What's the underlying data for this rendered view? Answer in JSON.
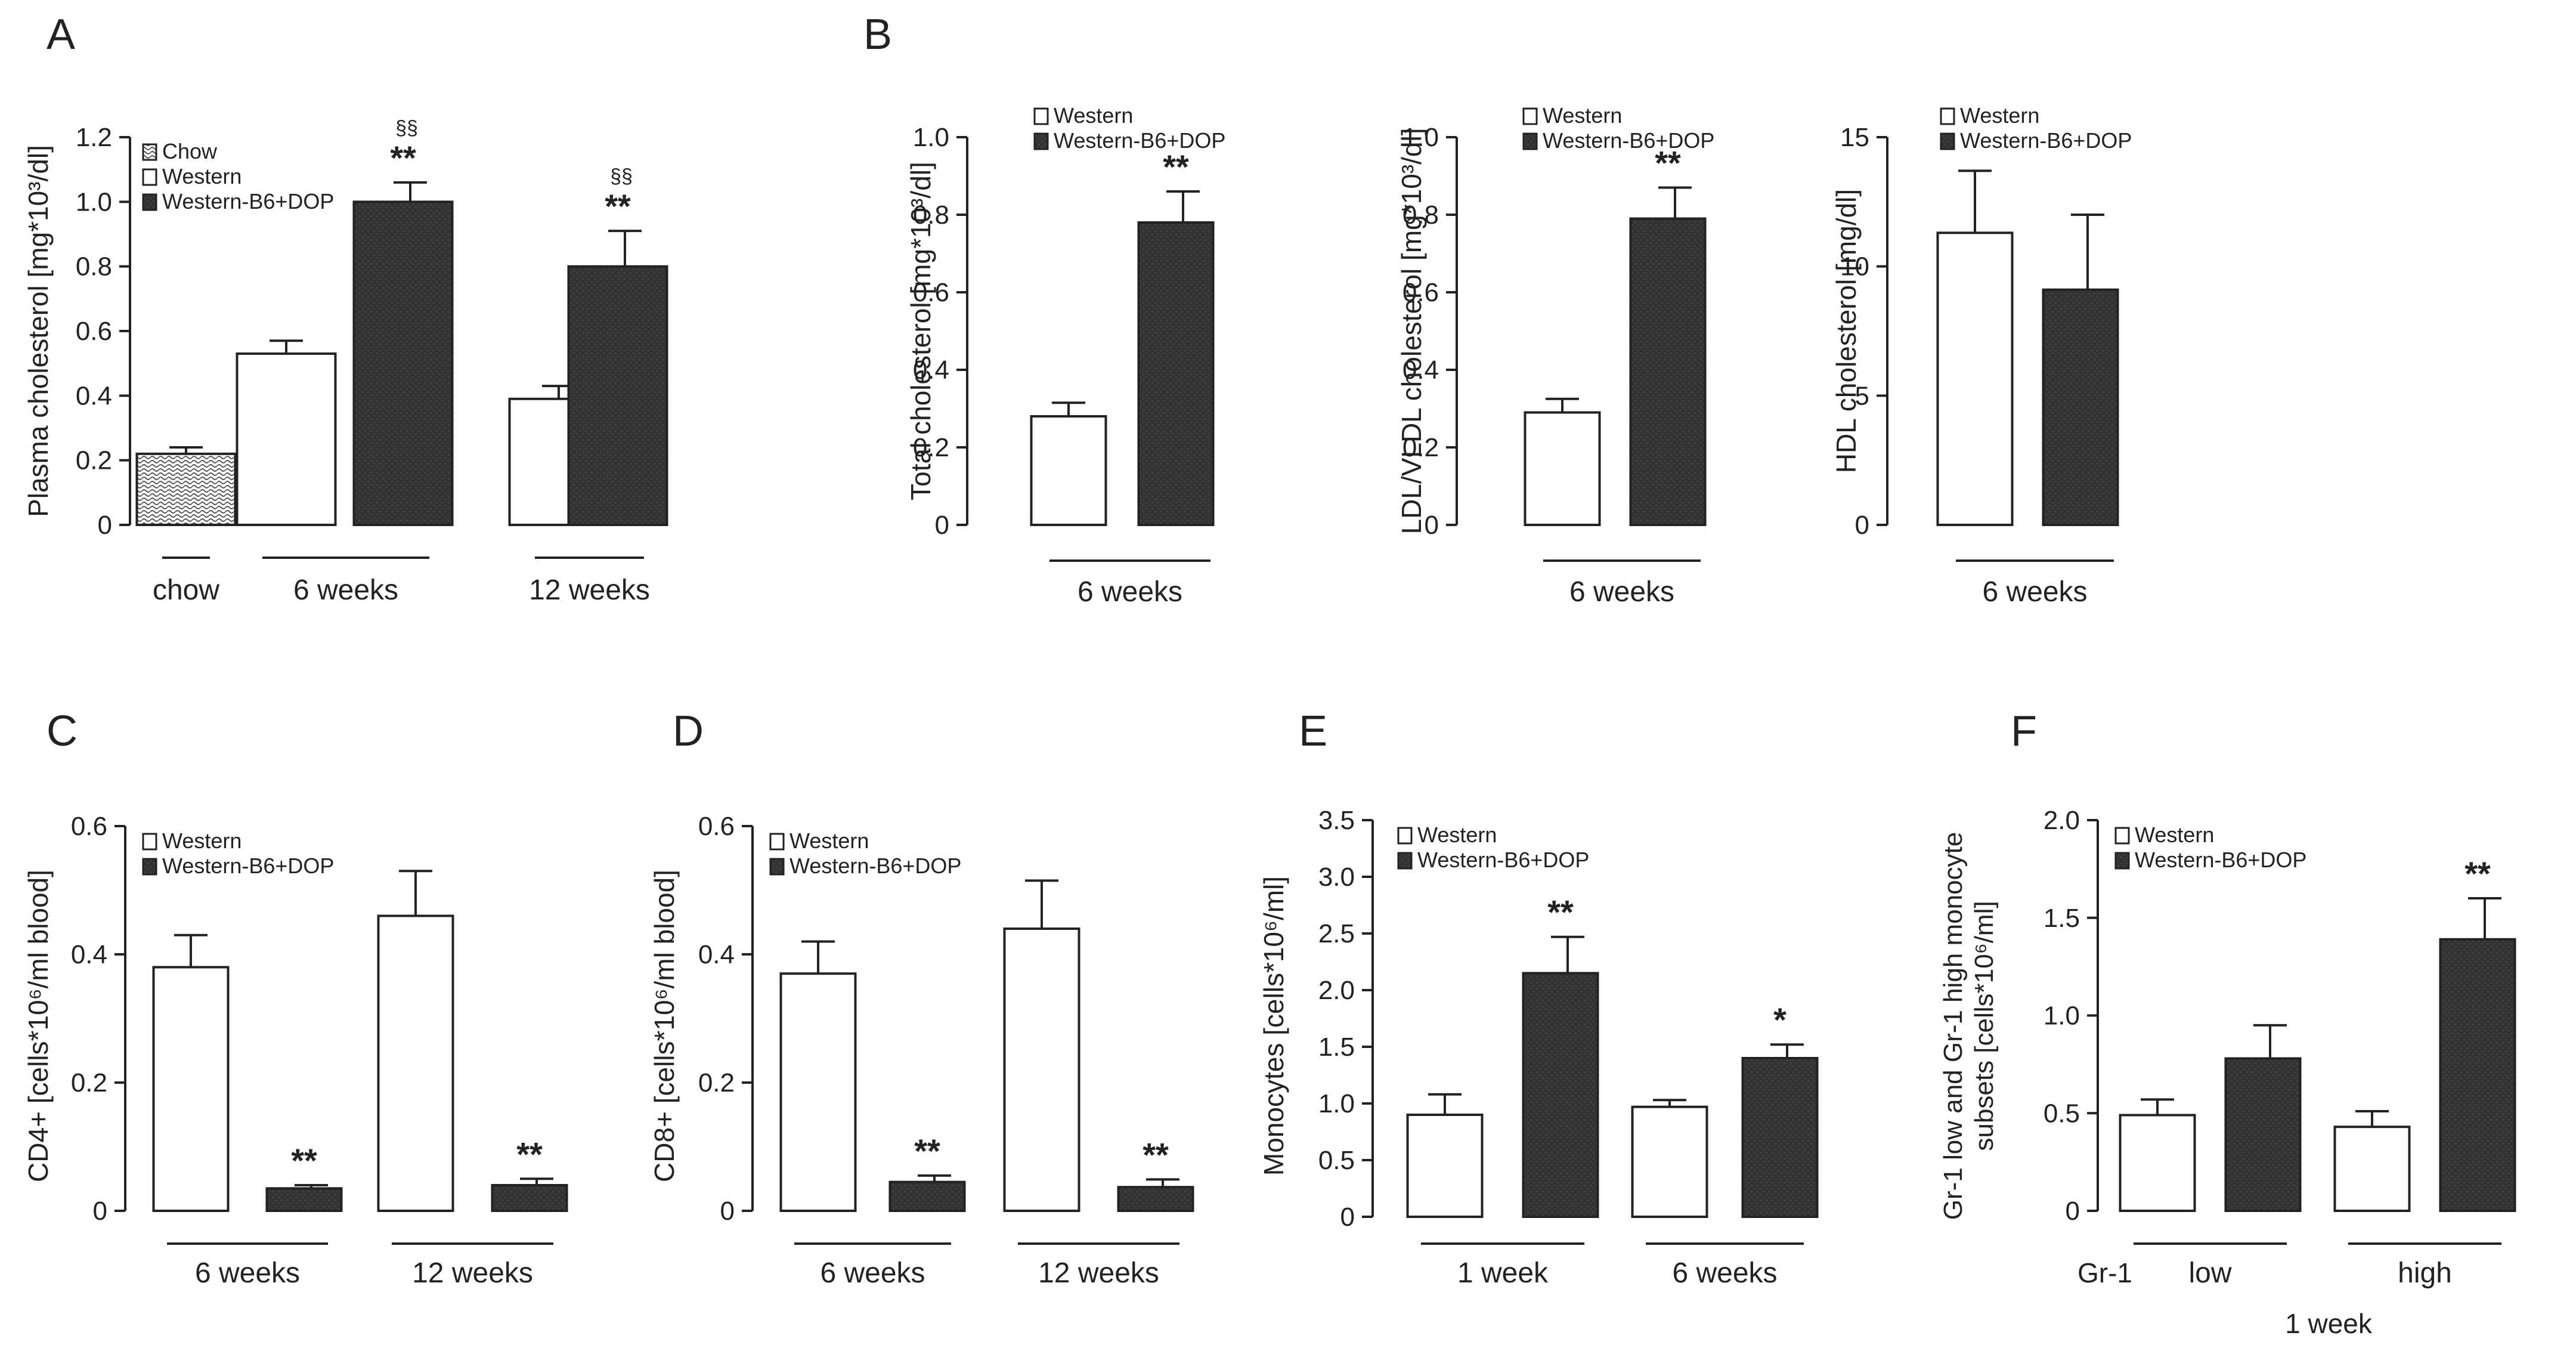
{
  "chart_data": [
    {
      "id": "A",
      "panel_label": "A",
      "type": "bar",
      "ylabel": "Plasma cholesterol [mg*10³/dl]",
      "ylim": [
        0,
        1.2
      ],
      "yticks": [
        0,
        0.2,
        0.4,
        0.6,
        0.8,
        1.0,
        1.2
      ],
      "ytick_labels": [
        "0",
        "0.2",
        "0.4",
        "0.6",
        "0.8",
        "1.0",
        "1.2"
      ],
      "legend": [
        {
          "label": "Chow",
          "fill": "chow"
        },
        {
          "label": "Western",
          "fill": "white"
        },
        {
          "label": "Western-B6+DOP",
          "fill": "dark"
        }
      ],
      "bars": [
        {
          "value": 0.22,
          "error": 0.02,
          "fill": "chow",
          "sig": ""
        },
        {
          "value": 0.53,
          "error": 0.04,
          "fill": "white",
          "sig": ""
        },
        {
          "value": 1.0,
          "error": 0.06,
          "fill": "dark",
          "sig": "**",
          "sig2": "§§"
        },
        {
          "value": 0.39,
          "error": 0.04,
          "fill": "white",
          "sig": ""
        },
        {
          "value": 0.8,
          "error": 0.11,
          "fill": "dark",
          "sig": "**",
          "sig2": "§§"
        }
      ],
      "groups": [
        {
          "label": "chow",
          "bars": [
            0
          ]
        },
        {
          "label": "6 weeks",
          "bars": [
            1,
            2
          ]
        },
        {
          "label": "12 weeks",
          "bars": [
            3,
            4
          ]
        }
      ]
    },
    {
      "id": "B1",
      "panel_label": "B",
      "type": "bar",
      "ylabel": "Total cholesterol [mg*10³/dl]",
      "ylim": [
        0,
        1.0
      ],
      "yticks": [
        0,
        0.2,
        0.4,
        0.6,
        0.8,
        1.0
      ],
      "ytick_labels": [
        "0",
        "0.2",
        "0.4",
        "0.6",
        "0.8",
        "1.0"
      ],
      "legend": [
        {
          "label": "Western",
          "fill": "white"
        },
        {
          "label": "Western-B6+DOP",
          "fill": "dark"
        }
      ],
      "bars": [
        {
          "value": 0.28,
          "error": 0.035,
          "fill": "white",
          "sig": ""
        },
        {
          "value": 0.78,
          "error": 0.08,
          "fill": "dark",
          "sig": "**"
        }
      ],
      "groups": [
        {
          "label": "6 weeks",
          "bars": [
            0,
            1
          ]
        }
      ]
    },
    {
      "id": "B2",
      "panel_label": "",
      "type": "bar",
      "ylabel": "LDL/VLDL cholesterol [mg*10³/dl]",
      "ylim": [
        0,
        1.0
      ],
      "yticks": [
        0,
        0.2,
        0.4,
        0.6,
        0.8,
        1.0
      ],
      "ytick_labels": [
        "0",
        "0.2",
        "0.4",
        "0.6",
        "0.8",
        "1.0"
      ],
      "legend": [
        {
          "label": "Western",
          "fill": "white"
        },
        {
          "label": "Western-B6+DOP",
          "fill": "dark"
        }
      ],
      "bars": [
        {
          "value": 0.29,
          "error": 0.035,
          "fill": "white",
          "sig": ""
        },
        {
          "value": 0.79,
          "error": 0.08,
          "fill": "dark",
          "sig": "**"
        }
      ],
      "groups": [
        {
          "label": "6 weeks",
          "bars": [
            0,
            1
          ]
        }
      ]
    },
    {
      "id": "B3",
      "panel_label": "",
      "type": "bar",
      "ylabel": "HDL cholesterol [mg/dl]",
      "ylim": [
        0,
        15
      ],
      "yticks": [
        0,
        5,
        10,
        15
      ],
      "ytick_labels": [
        "0",
        "5",
        "10",
        "15"
      ],
      "legend": [
        {
          "label": "Western",
          "fill": "white"
        },
        {
          "label": "Western-B6+DOP",
          "fill": "dark"
        }
      ],
      "bars": [
        {
          "value": 11.3,
          "error": 2.4,
          "fill": "white",
          "sig": ""
        },
        {
          "value": 9.1,
          "error": 2.9,
          "fill": "dark",
          "sig": ""
        }
      ],
      "groups": [
        {
          "label": "6 weeks",
          "bars": [
            0,
            1
          ]
        }
      ]
    },
    {
      "id": "C",
      "panel_label": "C",
      "type": "bar",
      "ylabel": "CD4+ [cells*10⁶/ml blood]",
      "ylim": [
        0,
        0.6
      ],
      "yticks": [
        0,
        0.2,
        0.4,
        0.6
      ],
      "ytick_labels": [
        "0",
        "0.2",
        "0.4",
        "0.6"
      ],
      "legend": [
        {
          "label": "Western",
          "fill": "white"
        },
        {
          "label": "Western-B6+DOP",
          "fill": "dark"
        }
      ],
      "bars": [
        {
          "value": 0.38,
          "error": 0.05,
          "fill": "white",
          "sig": ""
        },
        {
          "value": 0.035,
          "error": 0.005,
          "fill": "dark",
          "sig": "**"
        },
        {
          "value": 0.46,
          "error": 0.07,
          "fill": "white",
          "sig": ""
        },
        {
          "value": 0.04,
          "error": 0.01,
          "fill": "dark",
          "sig": "**"
        }
      ],
      "groups": [
        {
          "label": "6 weeks",
          "bars": [
            0,
            1
          ]
        },
        {
          "label": "12 weeks",
          "bars": [
            2,
            3
          ]
        }
      ]
    },
    {
      "id": "D",
      "panel_label": "D",
      "type": "bar",
      "ylabel": "CD8+ [cells*10⁶/ml blood]",
      "ylim": [
        0,
        0.6
      ],
      "yticks": [
        0,
        0.2,
        0.4,
        0.6
      ],
      "ytick_labels": [
        "0",
        "0.2",
        "0.4",
        "0.6"
      ],
      "legend": [
        {
          "label": "Western",
          "fill": "white"
        },
        {
          "label": "Western-B6+DOP",
          "fill": "dark"
        }
      ],
      "bars": [
        {
          "value": 0.37,
          "error": 0.05,
          "fill": "white",
          "sig": ""
        },
        {
          "value": 0.045,
          "error": 0.01,
          "fill": "dark",
          "sig": "**"
        },
        {
          "value": 0.44,
          "error": 0.075,
          "fill": "white",
          "sig": ""
        },
        {
          "value": 0.037,
          "error": 0.012,
          "fill": "dark",
          "sig": "**"
        }
      ],
      "groups": [
        {
          "label": "6 weeks",
          "bars": [
            0,
            1
          ]
        },
        {
          "label": "12 weeks",
          "bars": [
            2,
            3
          ]
        }
      ]
    },
    {
      "id": "E",
      "panel_label": "E",
      "type": "bar",
      "ylabel": "Monocytes [cells*10⁶/ml]",
      "ylim": [
        0,
        3.5
      ],
      "yticks": [
        0,
        0.5,
        1.0,
        1.5,
        2.0,
        2.5,
        3.0,
        3.5
      ],
      "ytick_labels": [
        "0",
        "0.5",
        "1.0",
        "1.5",
        "2.0",
        "2.5",
        "3.0",
        "3.5"
      ],
      "legend": [
        {
          "label": "Western",
          "fill": "white"
        },
        {
          "label": "Western-B6+DOP",
          "fill": "dark"
        }
      ],
      "bars": [
        {
          "value": 0.9,
          "error": 0.18,
          "fill": "white",
          "sig": ""
        },
        {
          "value": 2.15,
          "error": 0.32,
          "fill": "dark",
          "sig": "**"
        },
        {
          "value": 0.97,
          "error": 0.06,
          "fill": "white",
          "sig": ""
        },
        {
          "value": 1.4,
          "error": 0.12,
          "fill": "dark",
          "sig": "*"
        }
      ],
      "groups": [
        {
          "label": "1 week",
          "bars": [
            0,
            1
          ]
        },
        {
          "label": "6 weeks",
          "bars": [
            2,
            3
          ]
        }
      ]
    },
    {
      "id": "F",
      "panel_label": "F",
      "type": "bar",
      "ylabel_lines": [
        "Gr-1 low and Gr-1 high monocyte",
        "subsets [cells*10⁶/ml]"
      ],
      "ylim": [
        0,
        2.0
      ],
      "yticks": [
        0,
        0.5,
        1.0,
        1.5,
        2.0
      ],
      "ytick_labels": [
        "0",
        "0.5",
        "1.0",
        "1.5",
        "2.0"
      ],
      "legend": [
        {
          "label": "Western",
          "fill": "white"
        },
        {
          "label": "Western-B6+DOP",
          "fill": "dark"
        }
      ],
      "bars": [
        {
          "value": 0.49,
          "error": 0.08,
          "fill": "white",
          "sig": ""
        },
        {
          "value": 0.78,
          "error": 0.17,
          "fill": "dark",
          "sig": ""
        },
        {
          "value": 0.43,
          "error": 0.08,
          "fill": "white",
          "sig": ""
        },
        {
          "value": 1.39,
          "error": 0.21,
          "fill": "dark",
          "sig": "**"
        }
      ],
      "groups": [
        {
          "label": "low",
          "bars": [
            0,
            1
          ]
        },
        {
          "label": "high",
          "bars": [
            2,
            3
          ]
        }
      ],
      "row_label": "Gr-1",
      "bottom_label": "1 week"
    }
  ],
  "colors": {
    "dark": "#333333",
    "white": "#ffffff",
    "chow": "#dddddd",
    "axis": "#222222",
    "text": "#222222"
  }
}
